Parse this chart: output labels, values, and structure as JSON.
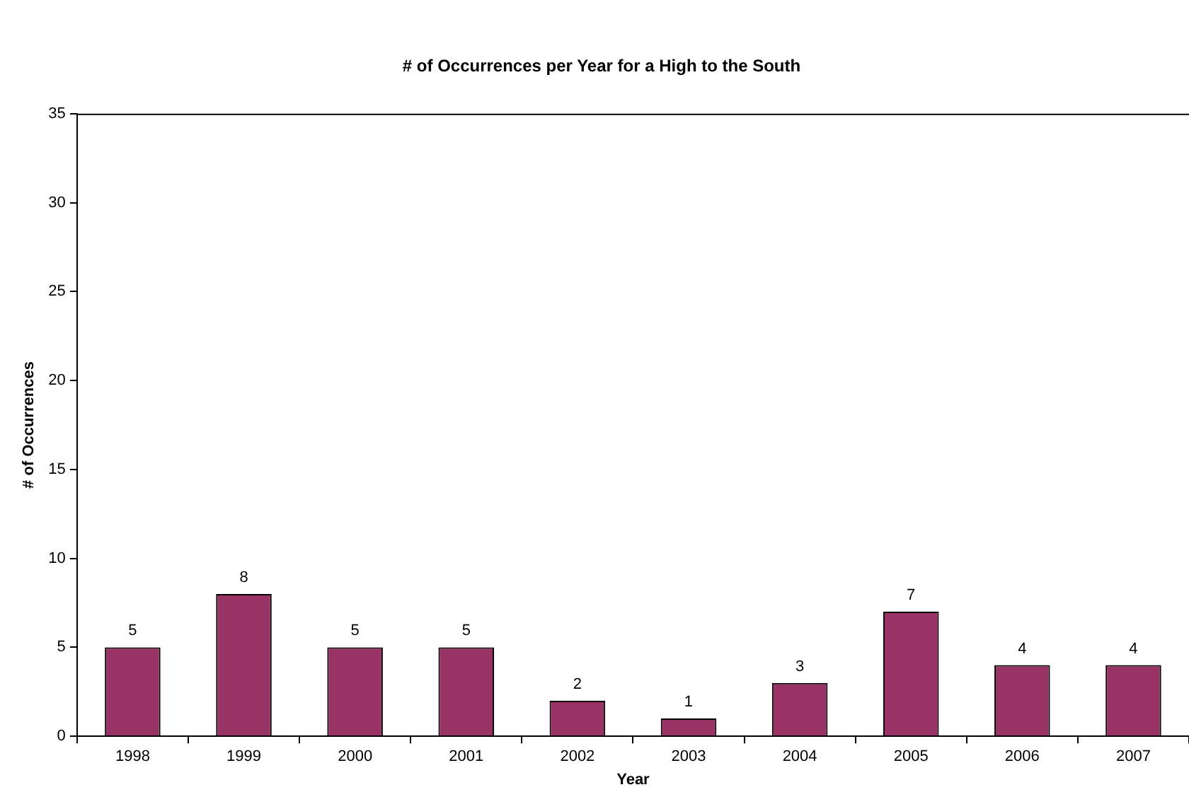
{
  "chart_data": {
    "type": "bar",
    "title": "# of Occurrences per Year for a High to the South",
    "xlabel": "Year",
    "ylabel": "# of Occurrences",
    "categories": [
      "1998",
      "1999",
      "2000",
      "2001",
      "2002",
      "2003",
      "2004",
      "2005",
      "2006",
      "2007"
    ],
    "values": [
      5,
      8,
      5,
      5,
      2,
      1,
      3,
      7,
      4,
      4
    ],
    "color": "#993366",
    "ylim": [
      0,
      35
    ],
    "yticks": [
      0,
      5,
      10,
      15,
      20,
      25,
      30,
      35
    ],
    "grid": false,
    "legend": false,
    "data_labels": true
  }
}
